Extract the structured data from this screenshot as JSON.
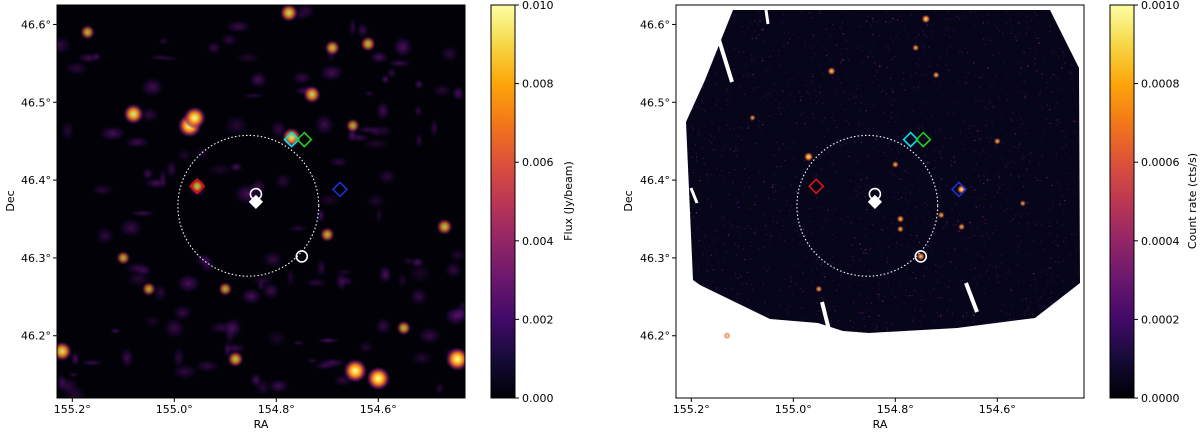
{
  "chart_data": [
    {
      "type": "heatmap",
      "xlabel": "RA",
      "ylabel": "Dec",
      "xlim": [
        155.23,
        154.43
      ],
      "ylim": [
        46.12,
        46.625
      ],
      "x_ticks": [
        "155.2°",
        "155.0°",
        "154.8°",
        "154.6°"
      ],
      "x_tick_values": [
        155.2,
        155.0,
        154.8,
        154.6
      ],
      "y_ticks": [
        "46.2°",
        "46.3°",
        "46.4°",
        "46.5°",
        "46.6°"
      ],
      "y_tick_values": [
        46.2,
        46.3,
        46.4,
        46.5,
        46.6
      ],
      "colorbar": {
        "label": "Flux (Jy/beam)",
        "range": [
          0.0,
          0.01
        ],
        "ticks": [
          "0.000",
          "0.002",
          "0.004",
          "0.006",
          "0.008",
          "0.010"
        ],
        "tick_values": [
          0.0,
          0.002,
          0.004,
          0.006,
          0.008,
          0.01
        ],
        "colormap": "inferno"
      },
      "circle": {
        "ra": 154.855,
        "dec": 46.367,
        "radius_deg": 0.138,
        "style": "dotted",
        "color": "#ffffff"
      },
      "markers": [
        {
          "ra": 154.77,
          "dec": 46.452,
          "shape": "diamond",
          "color": "#00e5ee"
        },
        {
          "ra": 154.745,
          "dec": 46.452,
          "shape": "diamond",
          "color": "#22cc22"
        },
        {
          "ra": 154.955,
          "dec": 46.392,
          "shape": "diamond",
          "color": "#dd1111"
        },
        {
          "ra": 154.675,
          "dec": 46.388,
          "shape": "diamond",
          "color": "#1c2fcf"
        },
        {
          "ra": 154.84,
          "dec": 46.382,
          "shape": "circle",
          "color": "#ffffff"
        },
        {
          "ra": 154.84,
          "dec": 46.372,
          "shape": "filled-diamond",
          "color": "#ffffff"
        },
        {
          "ra": 154.75,
          "dec": 46.302,
          "shape": "circle",
          "color": "#ffffff"
        }
      ],
      "sources": [
        {
          "ra": 154.97,
          "dec": 46.47,
          "intensity": 1.0
        },
        {
          "ra": 154.96,
          "dec": 46.48,
          "intensity": 0.9
        },
        {
          "ra": 155.08,
          "dec": 46.485,
          "intensity": 0.75
        },
        {
          "ra": 154.77,
          "dec": 46.455,
          "intensity": 0.7
        },
        {
          "ra": 154.73,
          "dec": 46.51,
          "intensity": 0.55
        },
        {
          "ra": 154.775,
          "dec": 46.615,
          "intensity": 0.6
        },
        {
          "ra": 154.955,
          "dec": 46.392,
          "intensity": 0.45
        },
        {
          "ra": 154.62,
          "dec": 46.575,
          "intensity": 0.4
        },
        {
          "ra": 154.47,
          "dec": 46.34,
          "intensity": 0.45
        },
        {
          "ra": 154.55,
          "dec": 46.21,
          "intensity": 0.35
        },
        {
          "ra": 154.645,
          "dec": 46.155,
          "intensity": 1.0
        },
        {
          "ra": 154.6,
          "dec": 46.145,
          "intensity": 1.0
        },
        {
          "ra": 154.445,
          "dec": 46.17,
          "intensity": 1.0
        },
        {
          "ra": 155.22,
          "dec": 46.18,
          "intensity": 0.7
        },
        {
          "ra": 154.69,
          "dec": 46.57,
          "intensity": 0.4
        },
        {
          "ra": 155.17,
          "dec": 46.59,
          "intensity": 0.35
        },
        {
          "ra": 154.88,
          "dec": 46.17,
          "intensity": 0.45
        },
        {
          "ra": 154.7,
          "dec": 46.33,
          "intensity": 0.35
        },
        {
          "ra": 154.9,
          "dec": 46.26,
          "intensity": 0.3
        },
        {
          "ra": 155.1,
          "dec": 46.3,
          "intensity": 0.3
        },
        {
          "ra": 154.65,
          "dec": 46.47,
          "intensity": 0.3
        },
        {
          "ra": 155.05,
          "dec": 46.26,
          "intensity": 0.3
        }
      ]
    },
    {
      "type": "heatmap",
      "xlabel": "RA",
      "ylabel": "Dec",
      "xlim": [
        155.23,
        154.43
      ],
      "ylim": [
        46.12,
        46.625
      ],
      "x_ticks": [
        "155.2°",
        "155.0°",
        "154.8°",
        "154.6°"
      ],
      "x_tick_values": [
        155.2,
        155.0,
        154.8,
        154.6
      ],
      "y_ticks": [
        "46.2°",
        "46.3°",
        "46.4°",
        "46.5°",
        "46.6°"
      ],
      "y_tick_values": [
        46.2,
        46.3,
        46.4,
        46.5,
        46.6
      ],
      "colorbar": {
        "label": "Count rate (cts/s)",
        "range": [
          0.0,
          0.001
        ],
        "ticks": [
          "0.0000",
          "0.0002",
          "0.0004",
          "0.0006",
          "0.0008",
          "0.0010"
        ],
        "tick_values": [
          0.0,
          0.0002,
          0.0004,
          0.0006,
          0.0008,
          0.001
        ],
        "colormap": "inferno"
      },
      "circle": {
        "ra": 154.855,
        "dec": 46.367,
        "radius_deg": 0.138,
        "style": "dotted",
        "color": "#ffffff"
      },
      "markers": [
        {
          "ra": 154.77,
          "dec": 46.452,
          "shape": "diamond",
          "color": "#00e5ee"
        },
        {
          "ra": 154.745,
          "dec": 46.452,
          "shape": "diamond",
          "color": "#22cc22"
        },
        {
          "ra": 154.955,
          "dec": 46.392,
          "shape": "diamond",
          "color": "#dd1111"
        },
        {
          "ra": 154.675,
          "dec": 46.388,
          "shape": "diamond",
          "color": "#1c2fcf"
        },
        {
          "ra": 154.84,
          "dec": 46.382,
          "shape": "circle",
          "color": "#ffffff"
        },
        {
          "ra": 154.84,
          "dec": 46.372,
          "shape": "filled-diamond",
          "color": "#ffffff"
        },
        {
          "ra": 154.75,
          "dec": 46.302,
          "shape": "circle",
          "color": "#ffffff"
        }
      ],
      "sources": [
        {
          "ra": 154.67,
          "dec": 46.388,
          "intensity": 0.9
        },
        {
          "ra": 154.75,
          "dec": 46.302,
          "intensity": 0.7
        },
        {
          "ra": 154.925,
          "dec": 46.54,
          "intensity": 0.7
        },
        {
          "ra": 154.72,
          "dec": 46.535,
          "intensity": 0.5
        },
        {
          "ra": 154.8,
          "dec": 46.42,
          "intensity": 0.5
        },
        {
          "ra": 154.79,
          "dec": 46.35,
          "intensity": 0.6
        },
        {
          "ra": 154.79,
          "dec": 46.337,
          "intensity": 0.5
        },
        {
          "ra": 154.67,
          "dec": 46.34,
          "intensity": 0.5
        },
        {
          "ra": 154.71,
          "dec": 46.355,
          "intensity": 0.5
        },
        {
          "ra": 154.97,
          "dec": 46.43,
          "intensity": 0.9
        },
        {
          "ra": 154.76,
          "dec": 46.57,
          "intensity": 0.5
        },
        {
          "ra": 154.6,
          "dec": 46.45,
          "intensity": 0.5
        },
        {
          "ra": 154.95,
          "dec": 46.26,
          "intensity": 0.5
        },
        {
          "ra": 154.55,
          "dec": 46.37,
          "intensity": 0.4
        },
        {
          "ra": 155.08,
          "dec": 46.48,
          "intensity": 0.4
        },
        {
          "ra": 154.74,
          "dec": 46.607,
          "intensity": 0.8
        },
        {
          "ra": 155.13,
          "dec": 46.2,
          "intensity": 0.5
        }
      ]
    }
  ]
}
